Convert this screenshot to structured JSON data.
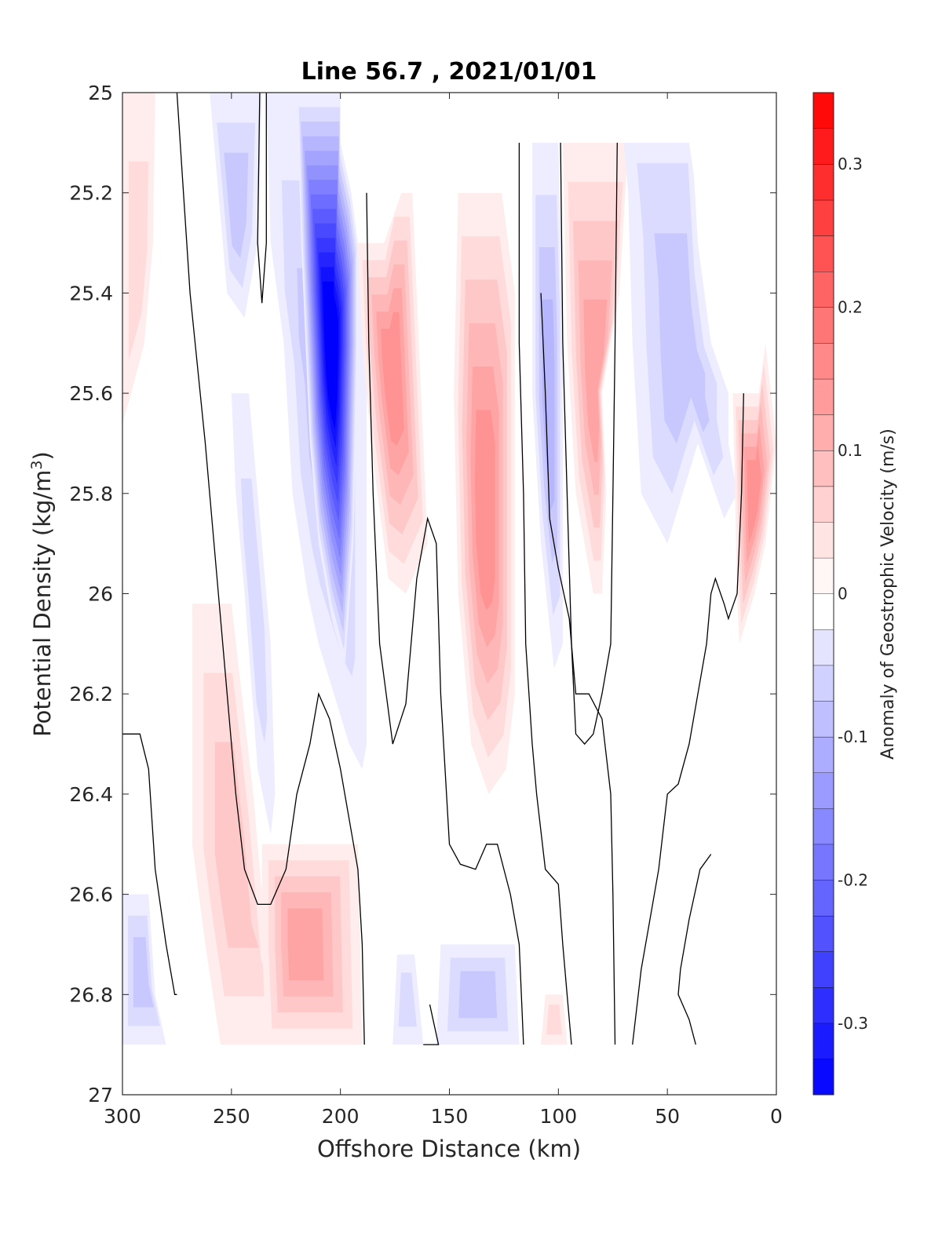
{
  "chart_data": {
    "type": "contour",
    "title": "Line 56.7 , 2021/01/01",
    "xlabel": "Offshore Distance (km)",
    "ylabel_main": "Potential Density (kg/m",
    "ylabel_sup": "3",
    "ylabel_close": ")",
    "xlim": [
      300,
      0
    ],
    "ylim": [
      25,
      27
    ],
    "x_reversed": true,
    "y_reversed": true,
    "x_ticks": [
      300,
      250,
      200,
      150,
      100,
      50,
      0
    ],
    "x_tick_labels": [
      "300",
      "250",
      "200",
      "150",
      "100",
      "50",
      "0"
    ],
    "y_ticks": [
      25,
      25.2,
      25.4,
      25.6,
      25.8,
      26,
      26.2,
      26.4,
      26.6,
      26.8,
      27
    ],
    "y_tick_labels": [
      "25",
      "25.2",
      "25.4",
      "25.6",
      "25.8",
      "26",
      "26.2",
      "26.4",
      "26.6",
      "26.8",
      "27"
    ],
    "colorbar": {
      "label": "Anomaly of Geostrophic Velocity (m/s)",
      "min": -0.35,
      "max": 0.35,
      "step": 0.025,
      "ticks": [
        0.3,
        0.2,
        0.1,
        0,
        -0.1,
        -0.2,
        -0.3
      ],
      "tick_labels": [
        "0.3",
        "0.2",
        "0.1",
        "0",
        "-0.1",
        "-0.2",
        "-0.3"
      ],
      "negative_color": "#0000ff",
      "positive_color": "#ff0000",
      "neutral_color": "#ffffff"
    },
    "no_data_mask": [
      [
        200,
        25.0
      ],
      [
        200,
        25.1
      ],
      [
        195,
        25.2
      ],
      [
        192,
        25.3
      ],
      [
        180,
        25.3
      ],
      [
        172,
        25.2
      ],
      [
        122,
        25.2
      ],
      [
        118,
        25.1
      ],
      [
        40,
        25.1
      ],
      [
        35,
        25.25
      ],
      [
        20,
        25.55
      ],
      [
        8,
        25.5
      ],
      [
        0,
        25.5
      ],
      [
        0,
        25.0
      ]
    ],
    "bottom_no_data_below": 26.9,
    "features": [
      {
        "sign": "positive",
        "max_abs": 0.06,
        "poly": [
          [
            300,
            25
          ],
          [
            285,
            25
          ],
          [
            286,
            25.3
          ],
          [
            290,
            25.5
          ],
          [
            296,
            25.6
          ],
          [
            300,
            25.66
          ]
        ]
      },
      {
        "sign": "negative",
        "max_abs": 0.07,
        "poly": [
          [
            260,
            25
          ],
          [
            236,
            25
          ],
          [
            238,
            25.3
          ],
          [
            244,
            25.45
          ],
          [
            252,
            25.4
          ],
          [
            256,
            25.2
          ]
        ]
      },
      {
        "sign": "negative",
        "max_abs": 0.08,
        "poly": [
          [
            226,
            25
          ],
          [
            200,
            25
          ],
          [
            195,
            25.2
          ],
          [
            190,
            25.3
          ],
          [
            188,
            25.5
          ],
          [
            188,
            26.3
          ],
          [
            190,
            26.35
          ],
          [
            196,
            26.3
          ],
          [
            203,
            26.2
          ],
          [
            210,
            26.1
          ],
          [
            215,
            26.0
          ],
          [
            222,
            25.8
          ],
          [
            226,
            25.5
          ],
          [
            232,
            25.3
          ],
          [
            234,
            25.0
          ]
        ]
      },
      {
        "sign": "negative",
        "max_abs": 0.06,
        "poly": [
          [
            250,
            25.6
          ],
          [
            242,
            25.6
          ],
          [
            236,
            25.9
          ],
          [
            232,
            26.1
          ],
          [
            230,
            26.4
          ],
          [
            232,
            26.48
          ],
          [
            238,
            26.35
          ],
          [
            244,
            26.0
          ],
          [
            248,
            25.8
          ]
        ]
      },
      {
        "sign": "negative",
        "max_abs": 0.35,
        "core": true,
        "poly": [
          [
            220,
            25.0
          ],
          [
            200,
            25.0
          ],
          [
            200,
            25.1
          ],
          [
            195,
            25.2
          ],
          [
            192,
            25.3
          ],
          [
            192,
            25.5
          ],
          [
            194,
            25.9
          ],
          [
            198,
            26.15
          ],
          [
            204,
            26.05
          ],
          [
            210,
            25.9
          ],
          [
            214,
            25.7
          ],
          [
            216,
            25.5
          ],
          [
            218,
            25.3
          ]
        ]
      },
      {
        "sign": "positive",
        "max_abs": 0.14,
        "poly": [
          [
            192,
            25.3
          ],
          [
            180,
            25.3
          ],
          [
            175,
            25.2
          ],
          [
            167,
            25.2
          ],
          [
            164,
            25.5
          ],
          [
            160,
            25.9
          ],
          [
            170,
            26.0
          ],
          [
            178,
            25.97
          ],
          [
            186,
            25.7
          ],
          [
            190,
            25.5
          ]
        ]
      },
      {
        "sign": "positive",
        "max_abs": 0.14,
        "poly": [
          [
            146,
            25.2
          ],
          [
            126,
            25.2
          ],
          [
            120,
            25.4
          ],
          [
            120,
            26.2
          ],
          [
            124,
            26.35
          ],
          [
            132,
            26.4
          ],
          [
            140,
            26.3
          ],
          [
            146,
            26.0
          ],
          [
            148,
            25.6
          ]
        ]
      },
      {
        "sign": "negative",
        "max_abs": 0.1,
        "poly": [
          [
            112,
            25.1
          ],
          [
            100,
            25.1
          ],
          [
            98,
            25.4
          ],
          [
            98,
            26.1
          ],
          [
            102,
            26.15
          ],
          [
            108,
            25.9
          ],
          [
            112,
            25.6
          ]
        ]
      },
      {
        "sign": "positive",
        "max_abs": 0.13,
        "poly": [
          [
            98,
            25.1
          ],
          [
            68,
            25.1
          ],
          [
            72,
            25.4
          ],
          [
            80,
            25.6
          ],
          [
            78,
            25.8
          ],
          [
            80,
            26.0
          ],
          [
            84,
            26.0
          ],
          [
            92,
            25.8
          ],
          [
            96,
            25.5
          ]
        ]
      },
      {
        "sign": "negative",
        "max_abs": 0.08,
        "poly": [
          [
            72,
            25.0
          ],
          [
            40,
            25.0
          ],
          [
            36,
            25.3
          ],
          [
            30,
            25.5
          ],
          [
            22,
            25.6
          ],
          [
            22,
            25.7
          ],
          [
            18,
            25.8
          ],
          [
            24,
            25.85
          ],
          [
            36,
            25.7
          ],
          [
            50,
            25.9
          ],
          [
            62,
            25.8
          ],
          [
            66,
            25.5
          ],
          [
            68,
            25.2
          ]
        ]
      },
      {
        "sign": "positive",
        "max_abs": 0.15,
        "poly": [
          [
            20,
            25.6
          ],
          [
            8,
            25.6
          ],
          [
            5,
            25.5
          ],
          [
            0,
            25.7
          ],
          [
            5,
            25.9
          ],
          [
            10,
            26.0
          ],
          [
            17,
            26.1
          ],
          [
            18,
            26.0
          ]
        ]
      },
      {
        "sign": "positive",
        "max_abs": 0.07,
        "poly": [
          [
            268,
            26.02
          ],
          [
            250,
            26.02
          ],
          [
            240,
            26.4
          ],
          [
            236,
            26.6
          ],
          [
            232,
            26.8
          ],
          [
            225,
            26.9
          ],
          [
            255,
            26.9
          ],
          [
            262,
            26.7
          ],
          [
            268,
            26.5
          ]
        ]
      },
      {
        "sign": "positive",
        "max_abs": 0.12,
        "poly": [
          [
            236,
            26.5
          ],
          [
            192,
            26.5
          ],
          [
            190,
            26.9
          ],
          [
            234,
            26.9
          ],
          [
            236,
            26.7
          ]
        ]
      },
      {
        "sign": "negative",
        "max_abs": 0.08,
        "poly": [
          [
            300,
            26.6
          ],
          [
            288,
            26.6
          ],
          [
            285,
            26.8
          ],
          [
            280,
            26.9
          ],
          [
            300,
            26.9
          ]
        ]
      },
      {
        "sign": "negative",
        "max_abs": 0.05,
        "poly": [
          [
            174,
            26.72
          ],
          [
            166,
            26.72
          ],
          [
            162,
            26.9
          ],
          [
            176,
            26.9
          ]
        ]
      },
      {
        "sign": "negative",
        "max_abs": 0.08,
        "poly": [
          [
            154,
            26.7
          ],
          [
            120,
            26.7
          ],
          [
            118,
            26.9
          ],
          [
            156,
            26.9
          ]
        ]
      },
      {
        "sign": "positive",
        "max_abs": 0.05,
        "poly": [
          [
            106,
            26.8
          ],
          [
            98,
            26.8
          ],
          [
            96,
            26.9
          ],
          [
            108,
            26.9
          ]
        ]
      }
    ],
    "zero_contours": [
      [
        [
          275,
          25.0
        ],
        [
          272,
          25.2
        ],
        [
          269,
          25.4
        ],
        [
          262,
          25.7
        ],
        [
          256,
          26.0
        ],
        [
          252,
          26.2
        ],
        [
          248,
          26.4
        ],
        [
          244,
          26.55
        ],
        [
          238,
          26.62
        ],
        [
          232,
          26.62
        ],
        [
          225,
          26.55
        ],
        [
          220,
          26.4
        ],
        [
          214,
          26.3
        ],
        [
          210,
          26.2
        ],
        [
          205,
          26.25
        ],
        [
          200,
          26.35
        ],
        [
          196,
          26.45
        ],
        [
          192,
          26.55
        ],
        [
          190,
          26.7
        ],
        [
          189,
          26.9
        ]
      ],
      [
        [
          237,
          25.0
        ],
        [
          238,
          25.3
        ],
        [
          236,
          25.42
        ],
        [
          234,
          25.3
        ],
        [
          234,
          25.0
        ]
      ],
      [
        [
          300,
          26.28
        ],
        [
          292,
          26.28
        ],
        [
          288,
          26.35
        ],
        [
          285,
          26.55
        ],
        [
          280,
          26.7
        ],
        [
          276,
          26.8
        ],
        [
          275,
          26.8
        ]
      ],
      [
        [
          188,
          25.2
        ],
        [
          187,
          25.5
        ],
        [
          185,
          25.8
        ],
        [
          182,
          26.1
        ],
        [
          176,
          26.3
        ],
        [
          170,
          26.22
        ],
        [
          165,
          25.97
        ],
        [
          160,
          25.85
        ],
        [
          156,
          25.9
        ],
        [
          154,
          26.2
        ],
        [
          150,
          26.5
        ],
        [
          145,
          26.54
        ],
        [
          138,
          26.55
        ],
        [
          133,
          26.5
        ],
        [
          128,
          26.5
        ],
        [
          122,
          26.6
        ],
        [
          118,
          26.7
        ],
        [
          116,
          26.9
        ]
      ],
      [
        [
          159,
          26.82
        ],
        [
          155,
          26.9
        ],
        [
          162,
          26.9
        ]
      ],
      [
        [
          118,
          25.1
        ],
        [
          118,
          25.5
        ],
        [
          116,
          25.8
        ],
        [
          115,
          26.1
        ],
        [
          112,
          26.3
        ],
        [
          110,
          26.4
        ],
        [
          106,
          26.55
        ],
        [
          100,
          26.58
        ],
        [
          98,
          26.7
        ],
        [
          96,
          26.8
        ],
        [
          94,
          26.9
        ]
      ],
      [
        [
          99,
          25.1
        ],
        [
          98,
          25.5
        ],
        [
          96,
          25.8
        ],
        [
          94,
          26.1
        ],
        [
          92,
          26.28
        ],
        [
          88,
          26.3
        ],
        [
          84,
          26.28
        ],
        [
          80,
          26.2
        ],
        [
          76,
          26.1
        ],
        [
          75,
          25.8
        ],
        [
          74,
          25.5
        ],
        [
          73,
          25.1
        ]
      ],
      [
        [
          74,
          26.9
        ],
        [
          75,
          26.6
        ],
        [
          76,
          26.4
        ],
        [
          80,
          26.25
        ],
        [
          86,
          26.2
        ],
        [
          92,
          26.2
        ],
        [
          95,
          26.05
        ],
        [
          100,
          25.95
        ],
        [
          104,
          25.85
        ],
        [
          106,
          25.6
        ],
        [
          108,
          25.4
        ]
      ],
      [
        [
          15,
          25.6
        ],
        [
          16,
          25.8
        ],
        [
          18,
          26.0
        ],
        [
          22,
          26.05
        ],
        [
          24,
          26.02
        ],
        [
          28,
          25.97
        ],
        [
          30,
          26.0
        ],
        [
          32,
          26.1
        ],
        [
          36,
          26.2
        ],
        [
          40,
          26.3
        ],
        [
          45,
          26.38
        ],
        [
          50,
          26.4
        ],
        [
          54,
          26.55
        ],
        [
          58,
          26.65
        ],
        [
          62,
          26.75
        ],
        [
          66,
          26.9
        ]
      ],
      [
        [
          30,
          26.52
        ],
        [
          35,
          26.55
        ],
        [
          40,
          26.65
        ],
        [
          44,
          26.75
        ],
        [
          45,
          26.8
        ],
        [
          40,
          26.85
        ],
        [
          37,
          26.9
        ]
      ]
    ]
  }
}
